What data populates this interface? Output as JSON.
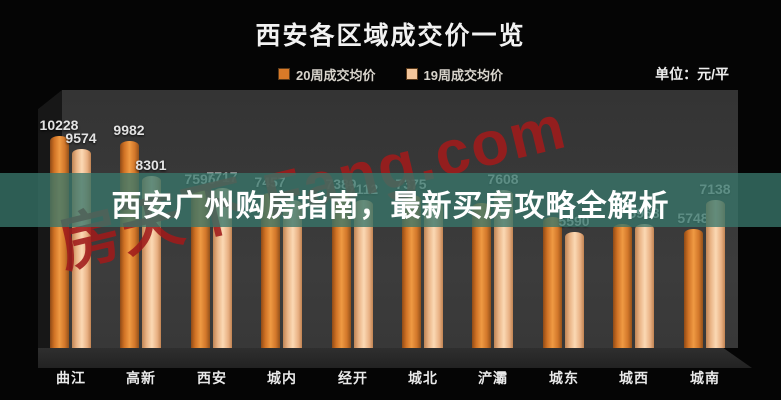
{
  "header": {
    "title": "西安各区域成交价一览",
    "unit_label": "单位：元/平"
  },
  "legend": [
    {
      "label": "20周成交均价",
      "color": "#d97a28"
    },
    {
      "label": "19周成交均价",
      "color": "#f3c59a"
    }
  ],
  "banner": {
    "text": "西安广州购房指南，最新买房攻略全解析"
  },
  "watermark": {
    "text": "房天下 Fang.com"
  },
  "colors": {
    "band_teal": "rgba(56,118,106,0.78)",
    "series_20week": "#d97a28",
    "series_19week": "#f3c59a",
    "watermark_red": "#a01b1b",
    "background": "#050505",
    "wall_gray": "#3a3a3a"
  },
  "chart_data": {
    "type": "bar",
    "title": "西安各区域成交价一览",
    "unit": "元/平",
    "legend_position": "top-center",
    "grid": false,
    "style": "3d-cylinder-dark",
    "categories": [
      "曲江",
      "高新",
      "西安",
      "城内",
      "经开",
      "城北",
      "浐灞",
      "城东",
      "城西",
      "城南"
    ],
    "series": [
      {
        "name": "20周成交均价",
        "color": "#d97a28",
        "values": [
          10228,
          9982,
          7595,
          7457,
          7389,
          7375,
          7000,
          6300,
          6000,
          5748
        ],
        "value_labels": [
          "10228",
          "9982",
          "7595",
          "7457",
          "7389",
          "7375",
          "",
          "",
          "",
          "5748"
        ]
      },
      {
        "name": "19周成交均价",
        "color": "#f3c59a",
        "values": [
          9574,
          8301,
          7717,
          7150,
          7112,
          7050,
          7608,
          5590,
          5968,
          7138
        ],
        "value_labels": [
          "9574",
          "8301",
          "7717",
          "",
          "7112",
          "",
          "7608",
          "5590",
          "5968",
          "7138"
        ]
      }
    ],
    "ylim": [
      0,
      12400
    ],
    "note": "value_labels with empty strings are hidden behind the headline banner in the screenshot; their values are estimated from bar heights"
  }
}
